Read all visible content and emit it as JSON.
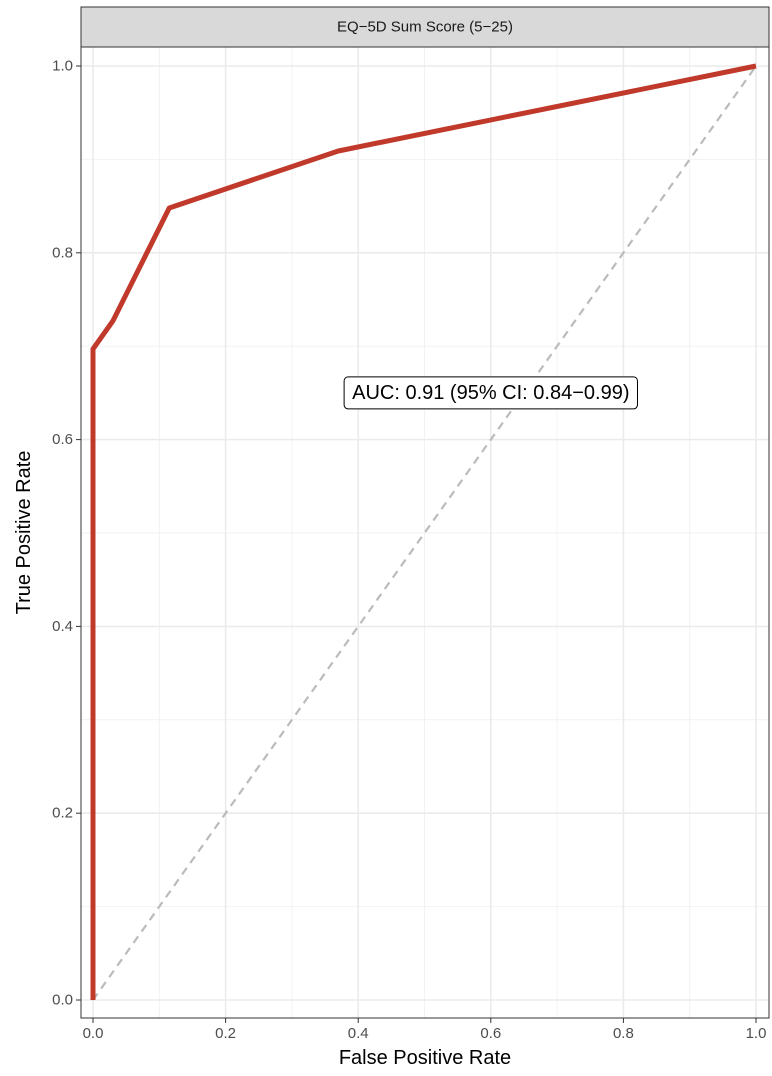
{
  "chart_data": {
    "type": "line",
    "facet_title": "EQ−5D Sum Score (5−25)",
    "xlabel": "False Positive Rate",
    "ylabel": "True Positive Rate",
    "xlim": [
      0,
      1
    ],
    "ylim": [
      0,
      1
    ],
    "x_ticks": [
      0,
      0.2,
      0.4,
      0.6,
      0.8,
      1
    ],
    "x_tick_labels": [
      "0.0",
      "0.2",
      "0.4",
      "0.6",
      "0.8",
      "1.0"
    ],
    "y_ticks": [
      0,
      0.2,
      0.4,
      0.6,
      0.8,
      1
    ],
    "y_tick_labels": [
      "0.0",
      "0.2",
      "0.4",
      "0.6",
      "0.8",
      "1.0"
    ],
    "grid": true,
    "series": [
      {
        "color": "#c0392b",
        "x": [
          0,
          0,
          0.03,
          0.115,
          0.37,
          1
        ],
        "y": [
          0,
          0.697,
          0.727,
          0.848,
          0.909,
          1
        ]
      }
    ],
    "reference_line": {
      "x": [
        0,
        1
      ],
      "y": [
        0,
        1
      ],
      "color": "#bbbbbb",
      "style": "dashed"
    },
    "annotation": {
      "text": "AUC: 0.91 (95% CI: 0.84−0.99)",
      "x": 0.6,
      "y": 0.65
    }
  }
}
